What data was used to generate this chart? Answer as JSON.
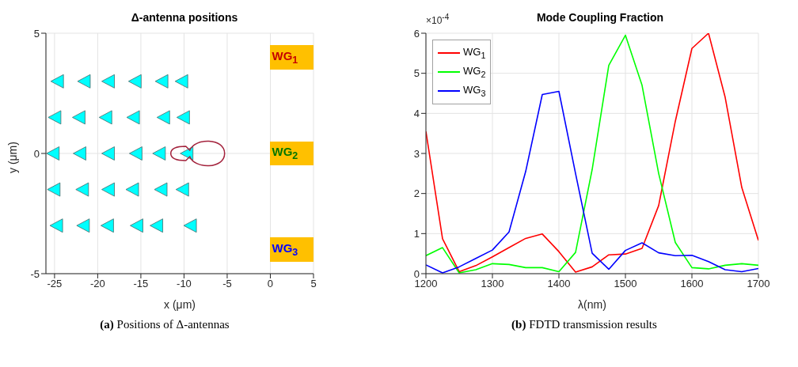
{
  "chart_data": [
    {
      "type": "scatter",
      "title": "Δ-antenna positions",
      "xlabel": "x (μm)",
      "ylabel": "y (μm)",
      "xlim": [
        -26,
        5
      ],
      "xticks": [
        -25,
        -20,
        -15,
        -10,
        -5,
        0,
        5
      ],
      "ylim": [
        -5,
        5
      ],
      "yticks": [
        -5,
        0,
        5
      ],
      "grid": true,
      "marker": "triangle",
      "series": [
        {
          "color": "#00ffff",
          "x": [
            -24.7,
            -21.6,
            -18.8,
            -15.7,
            -12.6,
            -10.3,
            -25.0,
            -22.2,
            -19.1,
            -15.9,
            -12.4,
            -10.1,
            -25.2,
            -22.1,
            -18.8,
            -15.6,
            -12.9,
            -9.7,
            -25.1,
            -21.8,
            -18.8,
            -16.0,
            -12.7,
            -10.2,
            -24.8,
            -21.7,
            -18.9,
            -15.5,
            -13.2,
            -9.3
          ],
          "values": [
            3,
            3,
            3,
            3,
            3,
            3,
            1.5,
            1.5,
            1.5,
            1.5,
            1.5,
            1.5,
            0,
            0,
            0,
            0,
            0,
            0,
            -1.5,
            -1.5,
            -1.5,
            -1.5,
            -1.5,
            -1.5,
            -3,
            -3,
            -3,
            -3,
            -3,
            -3
          ]
        }
      ],
      "annotations": [
        "WG$_{1}$",
        "WG$_{2}$",
        "WG$_{3}$",
        "(a) Positions of Δ-antennas"
      ]
    },
    {
      "type": "line",
      "title": "Mode Coupling Fraction",
      "xlabel": "λ(nm)",
      "x": [
        1200,
        1225,
        1250,
        1275,
        1300,
        1325,
        1350,
        1375,
        1400,
        1425,
        1450,
        1475,
        1500,
        1525,
        1550,
        1575,
        1600,
        1625,
        1650,
        1675,
        1700
      ],
      "xlim": [
        1200,
        1700
      ],
      "xticks": [
        1200,
        1300,
        1400,
        1500,
        1600,
        1700
      ],
      "ylim": [
        0,
        6
      ],
      "yticks": [
        0,
        1,
        2,
        3,
        4,
        5,
        6
      ],
      "grid": true,
      "legend": "top left",
      "marker": "none",
      "series": [
        {
          "name": "WG$_{1}$",
          "color": "#ff0000",
          "values": [
            3.55,
            0.87,
            0.05,
            0.2,
            0.42,
            0.65,
            0.88,
            0.99,
            0.55,
            0.04,
            0.17,
            0.47,
            0.49,
            0.63,
            1.7,
            3.8,
            5.62,
            6.0,
            4.4,
            2.15,
            0.83
          ]
        },
        {
          "name": "WG$_{2}$",
          "color": "#00ff00",
          "values": [
            0.45,
            0.65,
            0.02,
            0.1,
            0.25,
            0.23,
            0.15,
            0.15,
            0.05,
            0.53,
            2.6,
            5.2,
            5.95,
            4.7,
            2.5,
            0.78,
            0.15,
            0.12,
            0.21,
            0.25,
            0.21
          ]
        },
        {
          "name": "WG$_{3}$",
          "color": "#0000ff",
          "values": [
            0.22,
            0.02,
            0.17,
            0.38,
            0.59,
            1.04,
            2.55,
            4.47,
            4.55,
            2.5,
            0.51,
            0.11,
            0.58,
            0.77,
            0.52,
            0.45,
            0.46,
            0.3,
            0.1,
            0.05,
            0.13
          ]
        }
      ],
      "annotations": [
        "×10$^{-4}$",
        "(b) FDTD transmission results"
      ]
    }
  ]
}
